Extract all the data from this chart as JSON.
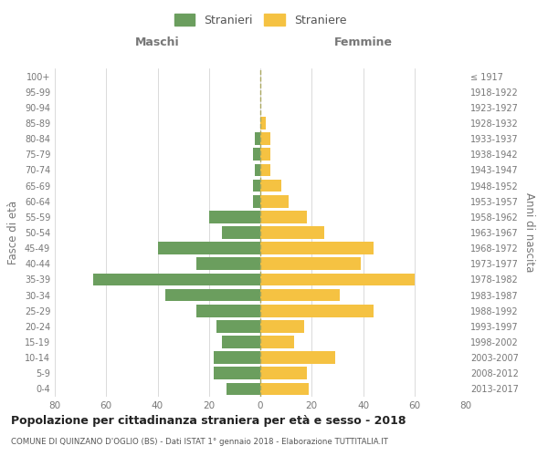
{
  "age_groups": [
    "100+",
    "95-99",
    "90-94",
    "85-89",
    "80-84",
    "75-79",
    "70-74",
    "65-69",
    "60-64",
    "55-59",
    "50-54",
    "45-49",
    "40-44",
    "35-39",
    "30-34",
    "25-29",
    "20-24",
    "15-19",
    "10-14",
    "5-9",
    "0-4"
  ],
  "birth_years": [
    "≤ 1917",
    "1918-1922",
    "1923-1927",
    "1928-1932",
    "1933-1937",
    "1938-1942",
    "1943-1947",
    "1948-1952",
    "1953-1957",
    "1958-1962",
    "1963-1967",
    "1968-1972",
    "1973-1977",
    "1978-1982",
    "1983-1987",
    "1988-1992",
    "1993-1997",
    "1998-2002",
    "2003-2007",
    "2008-2012",
    "2013-2017"
  ],
  "maschi": [
    0,
    0,
    0,
    0,
    2,
    3,
    2,
    3,
    3,
    20,
    15,
    40,
    25,
    65,
    37,
    25,
    17,
    15,
    18,
    18,
    13
  ],
  "femmine": [
    0,
    0,
    0,
    2,
    4,
    4,
    4,
    8,
    11,
    18,
    25,
    44,
    39,
    60,
    31,
    44,
    17,
    13,
    29,
    18,
    19
  ],
  "maschi_color": "#6b9e5e",
  "femmine_color": "#f5c242",
  "background_color": "#ffffff",
  "grid_color": "#cccccc",
  "title": "Popolazione per cittadinanza straniera per età e sesso - 2018",
  "subtitle": "COMUNE DI QUINZANO D'OGLIO (BS) - Dati ISTAT 1° gennaio 2018 - Elaborazione TUTTITALIA.IT",
  "xlabel_left": "Maschi",
  "xlabel_right": "Femmine",
  "ylabel_left": "Fasce di età",
  "ylabel_right": "Anni di nascita",
  "legend_maschi": "Stranieri",
  "legend_femmine": "Straniere",
  "xlim": 80,
  "bar_height": 0.8
}
